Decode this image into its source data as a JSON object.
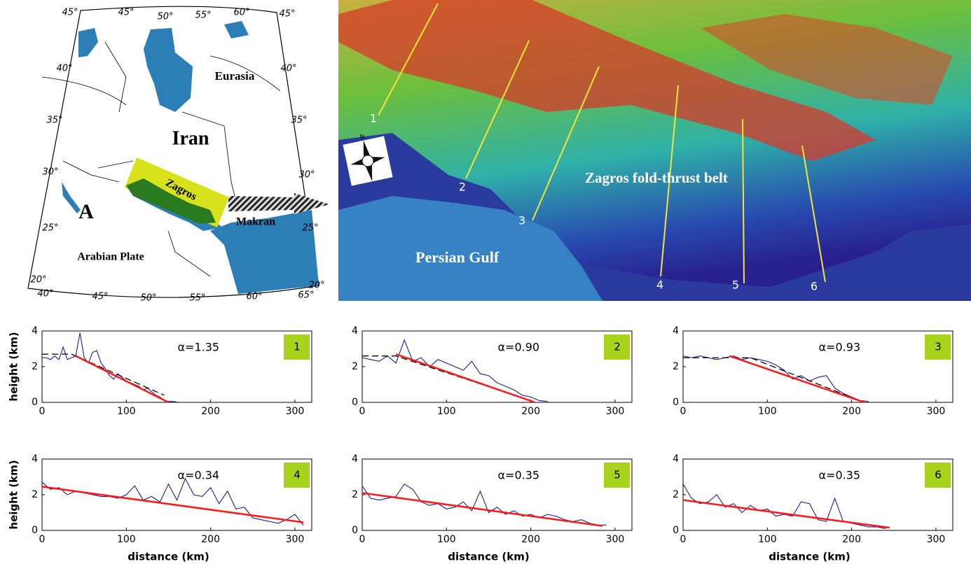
{
  "map": {
    "labels": [
      "45°",
      "45°",
      "50°",
      "55°",
      "60°",
      "45°",
      "40°",
      "40°",
      "35°",
      "35°",
      "30°",
      "30°",
      "25°",
      "25°",
      "20°",
      "20°",
      "40°",
      "45°",
      "50°",
      "55°",
      "60°",
      "65°"
    ],
    "names": [
      "Eurasia",
      "Iran",
      "Zagros",
      "Makran",
      "Arabian Plate",
      "A"
    ]
  },
  "dem": {
    "profile_labels": [
      "1",
      "2",
      "3",
      "4",
      "5",
      "6"
    ],
    "belt": "Zagros fold-thrust belt",
    "gulf": "Persian Gulf",
    "north": "N"
  },
  "chart_data": [
    {
      "type": "line",
      "annotation": "α=1.35",
      "panel_label": "1",
      "y_label": "height (km)",
      "xlim": [
        0,
        320
      ],
      "ylim": [
        0,
        4
      ],
      "xticks": [
        0,
        100,
        200,
        300
      ],
      "yticks": [
        0,
        2,
        4
      ],
      "series": [
        {
          "color": "#1c1c8c",
          "x": [
            0,
            5,
            10,
            15,
            20,
            25,
            30,
            35,
            40,
            45,
            50,
            55,
            60,
            65,
            70,
            75,
            80,
            85,
            90,
            95,
            100,
            105,
            110,
            115,
            120,
            125,
            130,
            135,
            140,
            145,
            150,
            155,
            160
          ],
          "values": [
            2.5,
            2.5,
            2.4,
            2.6,
            2.4,
            3.1,
            2.4,
            2.5,
            2.6,
            3.9,
            2.5,
            2.2,
            2.8,
            2.9,
            2.2,
            1.9,
            1.5,
            1.3,
            1.6,
            1.4,
            1.2,
            1.1,
            1.0,
            0.9,
            0.7,
            0.8,
            0.6,
            0.4,
            0.3,
            0.1,
            0.05,
            0.05,
            0.02
          ]
        },
        {
          "color": "#000000",
          "style": "dashed",
          "x": [
            0,
            35,
            145
          ],
          "values": [
            2.7,
            2.7,
            0.4
          ]
        },
        {
          "color": "#ff1a1a",
          "x": [
            40,
            150
          ],
          "values": [
            2.6,
            0
          ]
        }
      ]
    },
    {
      "type": "line",
      "annotation": "α=0.90",
      "panel_label": "2",
      "xlim": [
        0,
        320
      ],
      "ylim": [
        0,
        4
      ],
      "xticks": [
        0,
        100,
        200,
        300
      ],
      "yticks": [
        0,
        2,
        4
      ],
      "series": [
        {
          "color": "#1c1c8c",
          "x": [
            0,
            10,
            20,
            30,
            40,
            50,
            60,
            70,
            80,
            90,
            100,
            110,
            120,
            130,
            140,
            150,
            160,
            170,
            180,
            190,
            200,
            210,
            220
          ],
          "values": [
            2.5,
            2.4,
            2.3,
            2.6,
            2.2,
            3.5,
            2.3,
            2.5,
            2.0,
            2.4,
            2.2,
            2.0,
            1.8,
            2.3,
            1.6,
            1.5,
            1.1,
            0.9,
            0.7,
            0.4,
            0.3,
            0.1,
            0.05
          ]
        },
        {
          "color": "#000000",
          "style": "dashed",
          "x": [
            0,
            40,
            200
          ],
          "values": [
            2.6,
            2.6,
            0.1
          ]
        },
        {
          "color": "#ff1a1a",
          "x": [
            40,
            205
          ],
          "values": [
            2.7,
            0
          ]
        }
      ]
    },
    {
      "type": "line",
      "annotation": "α=0.93",
      "panel_label": "3",
      "xlim": [
        0,
        320
      ],
      "ylim": [
        0,
        4
      ],
      "xticks": [
        0,
        100,
        200,
        300
      ],
      "yticks": [
        0,
        2,
        4
      ],
      "series": [
        {
          "color": "#1c1c8c",
          "x": [
            0,
            10,
            20,
            30,
            40,
            50,
            60,
            70,
            80,
            90,
            100,
            110,
            120,
            130,
            140,
            150,
            160,
            170,
            180,
            190,
            200,
            210,
            220
          ],
          "values": [
            2.6,
            2.5,
            2.6,
            2.5,
            2.4,
            2.5,
            2.6,
            2.4,
            2.5,
            2.4,
            2.3,
            2.1,
            1.8,
            1.3,
            1.5,
            1.2,
            1.4,
            1.5,
            0.8,
            0.5,
            0.3,
            0.1,
            0.05
          ]
        },
        {
          "color": "#000000",
          "style": "dashed",
          "x": [
            0,
            80,
            210
          ],
          "values": [
            2.5,
            2.5,
            0.1
          ]
        },
        {
          "color": "#ff1a1a",
          "x": [
            55,
            215
          ],
          "values": [
            2.6,
            0
          ]
        }
      ]
    },
    {
      "type": "line",
      "annotation": "α=0.34",
      "panel_label": "4",
      "y_label": "height (km)",
      "x_label": "distance (km)",
      "xlim": [
        0,
        320
      ],
      "ylim": [
        0,
        4
      ],
      "xticks": [
        0,
        100,
        200,
        300
      ],
      "yticks": [
        0,
        2,
        4
      ],
      "series": [
        {
          "color": "#1c1c8c",
          "x": [
            0,
            10,
            20,
            30,
            40,
            50,
            60,
            70,
            80,
            90,
            100,
            110,
            120,
            130,
            140,
            150,
            160,
            170,
            180,
            190,
            200,
            210,
            220,
            230,
            240,
            250,
            260,
            270,
            280,
            290,
            300,
            310
          ],
          "values": [
            2.7,
            2.3,
            2.4,
            2.0,
            2.2,
            2.1,
            2.0,
            1.9,
            1.9,
            1.8,
            2.0,
            2.5,
            1.7,
            1.9,
            1.6,
            2.6,
            1.7,
            2.9,
            2.0,
            1.9,
            2.4,
            1.5,
            2.2,
            1.2,
            1.3,
            0.7,
            0.6,
            0.5,
            0.4,
            0.6,
            0.9,
            0.3
          ]
        },
        {
          "color": "#ff1a1a",
          "x": [
            0,
            310
          ],
          "values": [
            2.45,
            0.45
          ]
        }
      ]
    },
    {
      "type": "line",
      "annotation": "α=0.35",
      "panel_label": "5",
      "x_label": "distance (km)",
      "xlim": [
        0,
        320
      ],
      "ylim": [
        0,
        4
      ],
      "xticks": [
        0,
        100,
        200,
        300
      ],
      "yticks": [
        0,
        2,
        4
      ],
      "series": [
        {
          "color": "#1c1c8c",
          "x": [
            0,
            10,
            20,
            30,
            40,
            50,
            60,
            70,
            80,
            90,
            100,
            110,
            120,
            130,
            140,
            150,
            160,
            170,
            180,
            190,
            200,
            210,
            220,
            230,
            240,
            250,
            260,
            270,
            280,
            290
          ],
          "values": [
            2.5,
            1.8,
            1.7,
            1.8,
            1.9,
            2.6,
            2.3,
            1.6,
            1.4,
            1.5,
            1.2,
            1.3,
            1.6,
            1.1,
            2.2,
            1.0,
            1.3,
            0.9,
            1.1,
            0.8,
            0.9,
            0.7,
            0.9,
            0.8,
            0.6,
            0.5,
            0.6,
            0.4,
            0.3,
            0.3
          ]
        },
        {
          "color": "#ff1a1a",
          "x": [
            0,
            285
          ],
          "values": [
            2.1,
            0.25
          ]
        }
      ]
    },
    {
      "type": "line",
      "annotation": "α=0.35",
      "panel_label": "6",
      "x_label": "distance (km)",
      "xlim": [
        0,
        320
      ],
      "ylim": [
        0,
        4
      ],
      "xticks": [
        0,
        100,
        200,
        300
      ],
      "yticks": [
        0,
        2,
        4
      ],
      "series": [
        {
          "color": "#1c1c8c",
          "x": [
            0,
            10,
            20,
            30,
            40,
            50,
            60,
            70,
            80,
            90,
            100,
            110,
            120,
            130,
            140,
            150,
            160,
            170,
            180,
            190,
            200,
            210,
            220,
            230,
            240
          ],
          "values": [
            2.6,
            1.8,
            1.5,
            1.6,
            2.0,
            1.3,
            1.5,
            1.0,
            1.4,
            1.1,
            1.2,
            0.8,
            0.9,
            0.8,
            1.6,
            1.5,
            0.6,
            0.5,
            1.8,
            0.5,
            0.4,
            0.3,
            0.2,
            0.2,
            0.1
          ]
        },
        {
          "color": "#ff1a1a",
          "x": [
            0,
            245
          ],
          "values": [
            1.7,
            0.15
          ]
        }
      ]
    }
  ]
}
